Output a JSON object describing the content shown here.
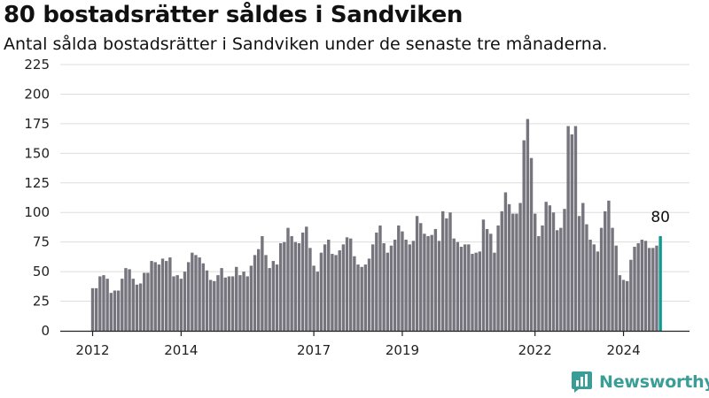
{
  "header": {
    "title": "80 bostadsrätter såldes i Sandviken",
    "subtitle": "Antal sålda bostadsrätter i Sandviken under de senaste tre månaderna."
  },
  "brand": {
    "name": "Newsworthy",
    "icon": "newsworthy-logo-icon",
    "color": "#3a9e97"
  },
  "chart_data": {
    "type": "bar",
    "x_start": "2012-01",
    "x_interval": "month",
    "xticks": [
      "2012",
      "2014",
      "2017",
      "2019",
      "2022",
      "2024"
    ],
    "yticks": [
      0,
      25,
      50,
      75,
      100,
      125,
      150,
      175,
      200,
      225
    ],
    "ylim": [
      0,
      225
    ],
    "grid": true,
    "colors": {
      "bar": "#76757e",
      "highlight": "#0e9a8e",
      "grid": "#dddddd"
    },
    "values": [
      36,
      36,
      46,
      47,
      44,
      32,
      34,
      34,
      44,
      53,
      52,
      44,
      39,
      40,
      49,
      49,
      59,
      58,
      56,
      61,
      59,
      62,
      46,
      47,
      44,
      50,
      58,
      66,
      64,
      62,
      57,
      51,
      43,
      42,
      47,
      53,
      45,
      46,
      46,
      54,
      47,
      50,
      46,
      55,
      64,
      69,
      80,
      64,
      53,
      59,
      56,
      74,
      75,
      87,
      80,
      75,
      74,
      83,
      88,
      70,
      55,
      50,
      66,
      73,
      77,
      65,
      64,
      68,
      73,
      79,
      78,
      63,
      56,
      54,
      56,
      61,
      73,
      83,
      89,
      74,
      66,
      72,
      77,
      89,
      84,
      77,
      73,
      76,
      97,
      91,
      82,
      80,
      81,
      86,
      76,
      101,
      95,
      100,
      78,
      75,
      71,
      73,
      73,
      65,
      66,
      67,
      94,
      86,
      82,
      66,
      89,
      101,
      117,
      107,
      99,
      99,
      108,
      161,
      179,
      146,
      99,
      80,
      89,
      109,
      106,
      100,
      85,
      87,
      103,
      173,
      166,
      173,
      97,
      108,
      90,
      77,
      73,
      67,
      87,
      101,
      110,
      87,
      72,
      47,
      43,
      42,
      60,
      71,
      74,
      77,
      76,
      70,
      70,
      72,
      80
    ],
    "last_value_label": "80"
  }
}
